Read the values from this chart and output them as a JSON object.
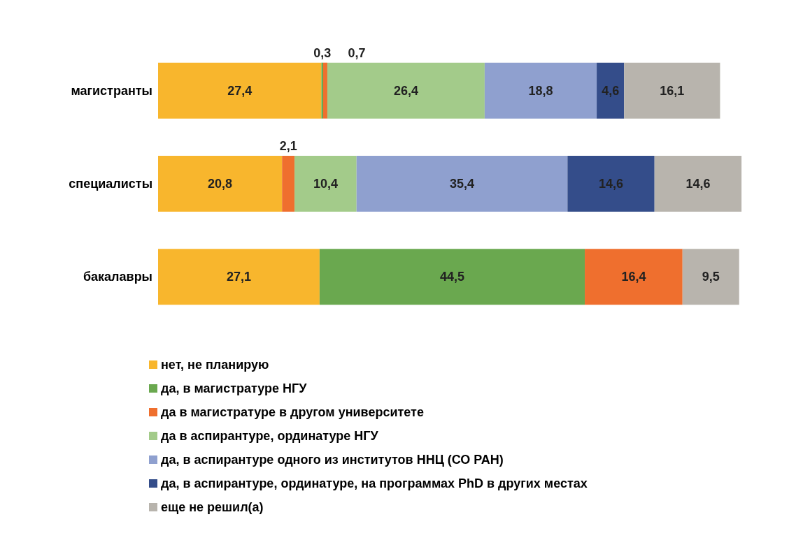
{
  "chart_data": {
    "type": "bar",
    "orientation": "horizontal",
    "stacked": true,
    "categories": [
      "магистранты",
      "специалисты",
      "бакалавры"
    ],
    "legend": "bottom",
    "series": [
      {
        "name": "нет, не планирую",
        "color": "#f8b62d",
        "values": [
          27.4,
          20.8,
          27.1
        ],
        "value_labels": [
          "27,4",
          "20,8",
          "27,1"
        ]
      },
      {
        "name": "да, в магистратуре НГУ",
        "color": "#6aa84f",
        "values": [
          0.3,
          null,
          44.5
        ],
        "value_labels": [
          "0,3",
          null,
          "44,5"
        ]
      },
      {
        "name": "да в магистратуре в другом университете",
        "color": "#ef6f2e",
        "values": [
          0.7,
          2.1,
          16.4
        ],
        "value_labels": [
          "0,7",
          "2,1",
          "16,4"
        ]
      },
      {
        "name": "да в аспирантуре, ординатуре НГУ",
        "color": "#a3cb8a",
        "values": [
          26.4,
          10.4,
          null
        ],
        "value_labels": [
          "26,4",
          "10,4",
          null
        ]
      },
      {
        "name": "да, в аспирантуре одного из институтов ННЦ (СО РАН)",
        "color": "#8fa0cf",
        "values": [
          18.8,
          35.4,
          null
        ],
        "value_labels": [
          "18,8",
          "35,4",
          null
        ]
      },
      {
        "name": "да, в аспирантуре, ординатуре, на программах PhD в других местах",
        "color": "#344d8a",
        "values": [
          4.6,
          14.6,
          null
        ],
        "value_labels": [
          "4,6",
          "14,6",
          null
        ]
      },
      {
        "name": "еще не решил(а)",
        "color": "#b8b4ad",
        "values": [
          16.1,
          14.6,
          9.5
        ],
        "value_labels": [
          "16,1",
          "14,6",
          "9,5"
        ]
      }
    ]
  }
}
